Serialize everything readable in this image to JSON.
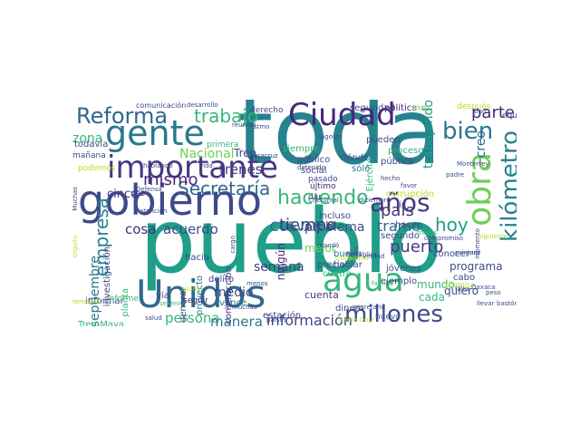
{
  "cloud": {
    "words": [
      {
        "text": "pueblo",
        "color": "#1f9e89"
      },
      {
        "text": "toda",
        "color": "#26828e"
      },
      {
        "text": "gobierno",
        "color": "#3e4a89"
      },
      {
        "text": "Unidos",
        "color": "#31688e"
      },
      {
        "text": "gente",
        "color": "#2a788e"
      },
      {
        "text": "Ciudad",
        "color": "#482878"
      },
      {
        "text": "agua",
        "color": "#35b779"
      },
      {
        "text": "importante",
        "color": "#443983"
      },
      {
        "text": "obra",
        "color": "#6ece58"
      },
      {
        "text": "Reforma",
        "color": "#31688e"
      },
      {
        "text": "kilómetro",
        "color": "#26828e"
      },
      {
        "text": "millones",
        "color": "#3e4a89"
      },
      {
        "text": "haciendo",
        "color": "#35b779"
      },
      {
        "text": "años",
        "color": "#443983"
      },
      {
        "text": "bien",
        "color": "#2a788e"
      },
      {
        "text": "trabajo",
        "color": "#35b779"
      },
      {
        "text": "Secretaría",
        "color": "#31688e"
      },
      {
        "text": "empresa",
        "color": "#26828e"
      },
      {
        "text": "parte",
        "color": "#482878"
      },
      {
        "text": "hoy",
        "color": "#1f9e89"
      },
      {
        "text": "información",
        "color": "#3e4a89"
      },
      {
        "text": "país",
        "color": "#443983"
      },
      {
        "text": "creo",
        "color": "#31688e"
      },
      {
        "text": "septiembre",
        "color": "#2a788e"
      },
      {
        "text": "tiempo",
        "color": "#472d7b"
      },
      {
        "text": "trabajando",
        "color": "#1f9e89"
      },
      {
        "text": "mismo",
        "color": "#482878"
      },
      {
        "text": "tramo",
        "color": "#31688e"
      },
      {
        "text": "puerto",
        "color": "#443983"
      },
      {
        "text": "Nacional",
        "color": "#6ece58"
      },
      {
        "text": "trenes",
        "color": "#443983"
      },
      {
        "text": "cosa",
        "color": "#472d7b"
      },
      {
        "text": "acuerdo",
        "color": "#3e4a89"
      },
      {
        "text": "CUEVAS",
        "color": "#31688e"
      },
      {
        "text": "semana",
        "color": "#443983"
      },
      {
        "text": "problema",
        "color": "#3e4a89"
      },
      {
        "text": "persona",
        "color": "#35b779"
      },
      {
        "text": "manera",
        "color": "#2a788e"
      },
      {
        "text": "medio",
        "color": "#3e4a89"
      },
      {
        "text": "cinco",
        "color": "#443983"
      },
      {
        "text": "zona",
        "color": "#35b779"
      },
      {
        "text": "Tren",
        "color": "#3e4a89"
      },
      {
        "text": "ningún",
        "color": "#482878"
      },
      {
        "text": "incluso",
        "color": "#3e4a89"
      },
      {
        "text": "hacia",
        "color": "#3e4a89"
      },
      {
        "text": "estación",
        "color": "#443983"
      },
      {
        "text": "nuevo",
        "color": "#31688e"
      },
      {
        "text": "cuenta",
        "color": "#443983"
      },
      {
        "text": "vía",
        "color": "#3e4a89"
      },
      {
        "text": "avance",
        "color": "#2a788e"
      },
      {
        "text": "delito",
        "color": "#3e4a89"
      },
      {
        "text": "dinero",
        "color": "#3e4a89"
      },
      {
        "text": "quiero",
        "color": "#3e4a89"
      },
      {
        "text": "programa",
        "color": "#3e4a89"
      },
      {
        "text": "cabo",
        "color": "#3e4a89"
      },
      {
        "text": "mundo",
        "color": "#35b779"
      },
      {
        "text": "cada",
        "color": "#35b779"
      },
      {
        "text": "conocer",
        "color": "#3e4a89"
      },
      {
        "text": "ejemplo",
        "color": "#3e4a89"
      },
      {
        "text": "jóvenes",
        "color": "#3e4a89"
      },
      {
        "text": "segundo",
        "color": "#3e4a89"
      },
      {
        "text": "hacen",
        "color": "#3e4a89"
      },
      {
        "text": "precio",
        "color": "#3e4a89"
      },
      {
        "text": "mejor",
        "color": "#6ece58"
      },
      {
        "text": "buena",
        "color": "#2a788e"
      },
      {
        "text": "hablar",
        "color": "#3e4a89"
      },
      {
        "text": "cuatro",
        "color": "#35b779"
      },
      {
        "text": "informar",
        "color": "#3e4a89"
      },
      {
        "text": "investigación",
        "color": "#3e4a89"
      },
      {
        "text": "planta",
        "color": "#35b779"
      },
      {
        "text": "general",
        "color": "#3e4a89"
      },
      {
        "text": "proyecto",
        "color": "#2a788e"
      },
      {
        "text": "construcción",
        "color": "#443983"
      },
      {
        "text": "seguir",
        "color": "#443983"
      },
      {
        "text": "Tren Maya",
        "color": "#35b779"
      },
      {
        "text": "Informe",
        "color": "#35b779"
      },
      {
        "text": "vez",
        "color": "#443983"
      },
      {
        "text": "siempre",
        "color": "#35b779"
      },
      {
        "text": "público",
        "color": "#3e4a89"
      },
      {
        "text": "social",
        "color": "#3e4a89"
      },
      {
        "text": "pasado",
        "color": "#3e4a89"
      },
      {
        "text": "último",
        "color": "#482878"
      },
      {
        "text": "dar",
        "color": "#3e4a89"
      },
      {
        "text": "dónde",
        "color": "#3e4a89"
      },
      {
        "text": "sólo",
        "color": "#2a788e"
      },
      {
        "text": "pueden",
        "color": "#3e4a89"
      },
      {
        "text": "proceso",
        "color": "#35b779"
      },
      {
        "text": "pública",
        "color": "#3e4a89"
      },
      {
        "text": "Ejército",
        "color": "#35b779"
      },
      {
        "text": "corrupción",
        "color": "#b5de2b"
      },
      {
        "text": "ir",
        "color": "#3e4a89"
      },
      {
        "text": "todavía",
        "color": "#3e4a89"
      },
      {
        "text": "mañana",
        "color": "#3e4a89"
      },
      {
        "text": "podemos",
        "color": "#b5de2b"
      },
      {
        "text": "primera",
        "color": "#35b779"
      },
      {
        "text": "derecho",
        "color": "#3e4a89"
      },
      {
        "text": "seguridad",
        "color": "#3e4a89"
      },
      {
        "text": "política",
        "color": "#482878"
      },
      {
        "text": "mes",
        "color": "#6ece58"
      },
      {
        "text": "después",
        "color": "#b5de2b"
      },
      {
        "text": "sino",
        "color": "#3e4a89"
      },
      {
        "text": "equipo",
        "color": "#3e4a89"
      },
      {
        "text": "comunicación",
        "color": "#3e4a89"
      },
      {
        "text": "desarrollo",
        "color": "#3e4a89"
      },
      {
        "text": "reunión",
        "color": "#3e4a89"
      },
      {
        "text": "istmo",
        "color": "#3e4a89"
      },
      {
        "text": "agosto",
        "color": "#3e4a89"
      },
      {
        "text": "secretario",
        "color": "#3e4a89"
      },
      {
        "text": "permiso",
        "color": "#b5de2b"
      },
      {
        "text": "falta",
        "color": "#3e4a89"
      },
      {
        "text": "Oaxaca",
        "color": "#3e4a89"
      },
      {
        "text": "peso",
        "color": "#3e4a89"
      },
      {
        "text": "llevar",
        "color": "#3e4a89"
      },
      {
        "text": "bastón",
        "color": "#3e4a89"
      },
      {
        "text": "Veracruz",
        "color": "#443983"
      },
      {
        "text": "Chetumal",
        "color": "#3e4a89"
      },
      {
        "text": "diciembre",
        "color": "#3e4a89"
      },
      {
        "text": "hecho",
        "color": "#3e4a89"
      },
      {
        "text": "favor",
        "color": "#3e4a89"
      },
      {
        "text": "padre",
        "color": "#3e4a89"
      },
      {
        "text": "Monterrey",
        "color": "#3e4a89"
      },
      {
        "text": "través",
        "color": "#35b779"
      },
      {
        "text": "primero",
        "color": "#3e4a89"
      },
      {
        "text": "juez",
        "color": "#3e4a89"
      },
      {
        "text": "momento",
        "color": "#3e4a89"
      },
      {
        "text": "hablando",
        "color": "#3e4a89"
      },
      {
        "text": "vida",
        "color": "#3e4a89"
      },
      {
        "text": "Defensa",
        "color": "#3e4a89"
      },
      {
        "text": "Muchas",
        "color": "#3e4a89"
      },
      {
        "text": "atención",
        "color": "#3e4a89"
      },
      {
        "text": "asunto",
        "color": "#b5de2b"
      },
      {
        "text": "muchas",
        "color": "#3e4a89"
      },
      {
        "text": "países",
        "color": "#3e4a89"
      },
      {
        "text": "Santa Cruz",
        "color": "#b5de2b"
      },
      {
        "text": "salud",
        "color": "#3e4a89"
      },
      {
        "text": "sexenio",
        "color": "#35b779"
      },
      {
        "text": "línea",
        "color": "#3e4a89"
      },
      {
        "text": "detenido",
        "color": "#3e4a89"
      },
      {
        "text": "República",
        "color": "#3e4a89"
      },
      {
        "text": "orgullo",
        "color": "#b5de2b"
      },
      {
        "text": "cargo",
        "color": "#3e4a89"
      },
      {
        "text": "menos",
        "color": "#3e4a89"
      },
      {
        "text": "mandó",
        "color": "#3e4a89"
      },
      {
        "text": "siguiente",
        "color": "#b5de2b"
      },
      {
        "text": "compromiso",
        "color": "#3e4a89"
      },
      {
        "text": "verdad",
        "color": "#3e4a89"
      },
      {
        "text": "temporal",
        "color": "#b5de2b"
      },
      {
        "text": "alto",
        "color": "#3e4a89"
      },
      {
        "text": "familia",
        "color": "#35b779"
      },
      {
        "text": "ciudadano",
        "color": "#b5de2b"
      }
    ]
  }
}
